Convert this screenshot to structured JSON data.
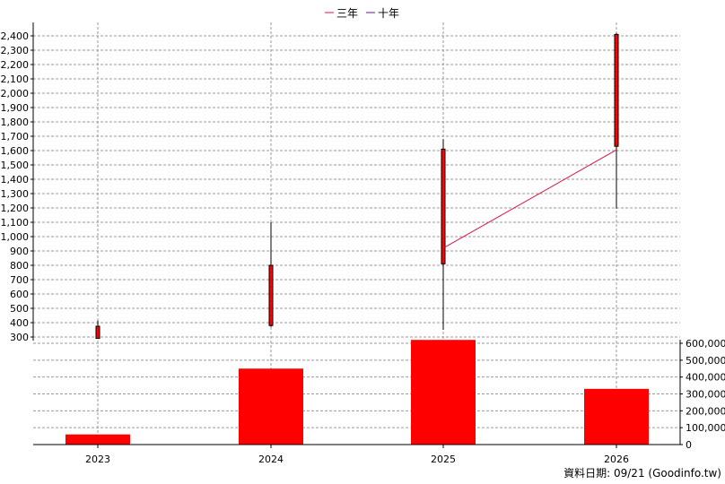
{
  "chart_data": {
    "type": "candlestick-volume",
    "legend": [
      {
        "label": "三年",
        "color": "#dc143c"
      },
      {
        "label": "十年",
        "color": "#6a0dad"
      }
    ],
    "categories": [
      "2023",
      "2024",
      "2025",
      "2026"
    ],
    "price_axis": {
      "min": 300,
      "max": 2400,
      "step": 100,
      "ticks": [
        "300",
        "400",
        "500",
        "600",
        "700",
        "800",
        "900",
        "1,000",
        "1,100",
        "1,200",
        "1,300",
        "1,400",
        "1,500",
        "1,600",
        "1,700",
        "1,800",
        "1,900",
        "2,000",
        "2,100",
        "2,200",
        "2,300",
        "2,400"
      ]
    },
    "volume_axis": {
      "min": 0,
      "max": 600000,
      "step": 100000,
      "ticks": [
        "0",
        "100,000",
        "200,000",
        "300,000",
        "400,000",
        "500,000",
        "600,000"
      ]
    },
    "candles": [
      {
        "year": "2023",
        "open": 375,
        "close": 290,
        "high": 415,
        "low": 290
      },
      {
        "year": "2024",
        "open": 380,
        "close": 800,
        "high": 1100,
        "low": 370
      },
      {
        "year": "2025",
        "open": 810,
        "close": 1610,
        "high": 1680,
        "low": 350
      },
      {
        "year": "2026",
        "open": 1630,
        "close": 2410,
        "high": 2420,
        "low": 1195
      }
    ],
    "volume": [
      {
        "year": "2023",
        "value": 60000
      },
      {
        "year": "2024",
        "value": 450000
      },
      {
        "year": "2025",
        "value": 620000
      },
      {
        "year": "2026",
        "value": 330000
      }
    ],
    "line_series": [
      {
        "name": "三年",
        "color": "#dc143c",
        "points": [
          {
            "year": "2025",
            "value": 920
          },
          {
            "year": "2026",
            "value": 1605
          }
        ]
      }
    ],
    "grid": true,
    "footer": "資料日期: 09/21  (Goodinfo.tw)"
  }
}
